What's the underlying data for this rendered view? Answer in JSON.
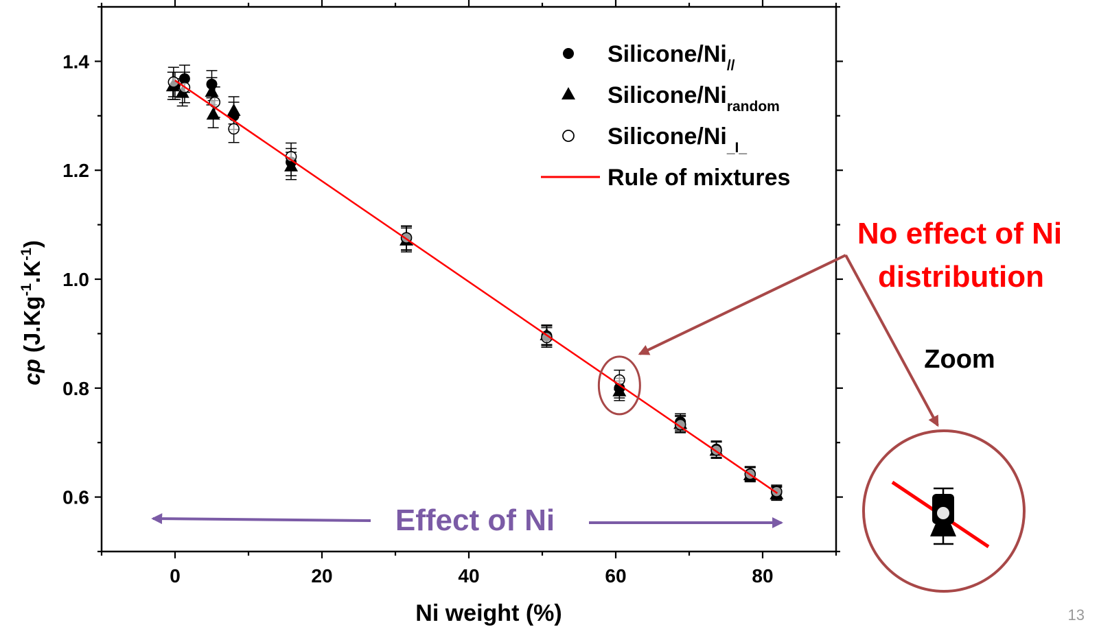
{
  "chart_data": {
    "type": "scatter",
    "title": "",
    "xlabel": "Ni weight (%)",
    "ylabel": {
      "main": "cp",
      "units_prefix": "(J.Kg",
      "sup1": "-1",
      "units_mid": ".K",
      "sup2": "-1",
      "units_suffix": ")"
    },
    "xlim": [
      -10,
      90
    ],
    "ylim": [
      0.5,
      1.5
    ],
    "xticks": [
      0,
      20,
      40,
      60,
      80
    ],
    "yticks": [
      0.6,
      0.8,
      1.0,
      1.2,
      1.4
    ],
    "xtick_labels": [
      "0",
      "20",
      "40",
      "60",
      "80"
    ],
    "ytick_labels": [
      "0.6",
      "0.8",
      "1.0",
      "1.2",
      "1.4"
    ],
    "grid": false,
    "legend_position": "top-right",
    "series": [
      {
        "name": "Silicone/Ni",
        "subscript": "//",
        "marker": "filled-circle",
        "color": "#000000",
        "points": [
          {
            "x": 0,
            "y": 1.355,
            "err": 0.025
          },
          {
            "x": 1.3,
            "y": 1.368,
            "err": 0.025
          },
          {
            "x": 5,
            "y": 1.358,
            "err": 0.025
          },
          {
            "x": 8,
            "y": 1.3,
            "err": 0.025
          },
          {
            "x": 15.8,
            "y": 1.215,
            "err": 0.025
          },
          {
            "x": 31.5,
            "y": 1.075,
            "err": 0.022
          },
          {
            "x": 50.6,
            "y": 0.896,
            "err": 0.018
          },
          {
            "x": 60.5,
            "y": 0.8,
            "err": 0.018
          },
          {
            "x": 68.8,
            "y": 0.738,
            "err": 0.015
          },
          {
            "x": 73.7,
            "y": 0.688,
            "err": 0.015
          },
          {
            "x": 78.3,
            "y": 0.643,
            "err": 0.013
          },
          {
            "x": 81.9,
            "y": 0.608,
            "err": 0.012
          }
        ]
      },
      {
        "name": "Silicone/Ni",
        "subscript": "random",
        "marker": "filled-triangle",
        "color": "#000000",
        "points": [
          {
            "x": -0.3,
            "y": 1.355,
            "err": 0.025
          },
          {
            "x": 1.0,
            "y": 1.343,
            "err": 0.025
          },
          {
            "x": 5.0,
            "y": 1.345,
            "err": 0.025
          },
          {
            "x": 5.2,
            "y": 1.303,
            "err": 0.025
          },
          {
            "x": 8.0,
            "y": 1.31,
            "err": 0.025
          },
          {
            "x": 15.8,
            "y": 1.208,
            "err": 0.025
          },
          {
            "x": 31.5,
            "y": 1.072,
            "err": 0.022
          },
          {
            "x": 50.6,
            "y": 0.898,
            "err": 0.018
          },
          {
            "x": 60.5,
            "y": 0.795,
            "err": 0.018
          },
          {
            "x": 68.8,
            "y": 0.735,
            "err": 0.015
          },
          {
            "x": 73.7,
            "y": 0.686,
            "err": 0.015
          },
          {
            "x": 78.3,
            "y": 0.641,
            "err": 0.013
          },
          {
            "x": 81.9,
            "y": 0.606,
            "err": 0.012
          }
        ]
      },
      {
        "name": "Silicone/Ni",
        "subscript": "_I_",
        "marker": "open-circle",
        "color": "#000000",
        "points": [
          {
            "x": -0.2,
            "y": 1.362,
            "err": 0.027
          },
          {
            "x": 1.3,
            "y": 1.352,
            "err": 0.028
          },
          {
            "x": 5.4,
            "y": 1.325,
            "err": 0.028
          },
          {
            "x": 8.0,
            "y": 1.276,
            "err": 0.025
          },
          {
            "x": 15.8,
            "y": 1.225,
            "err": 0.025
          },
          {
            "x": 31.5,
            "y": 1.076,
            "err": 0.022
          },
          {
            "x": 50.6,
            "y": 0.893,
            "err": 0.018
          },
          {
            "x": 60.5,
            "y": 0.815,
            "err": 0.018
          },
          {
            "x": 68.8,
            "y": 0.733,
            "err": 0.015
          },
          {
            "x": 73.7,
            "y": 0.686,
            "err": 0.015
          },
          {
            "x": 78.3,
            "y": 0.642,
            "err": 0.013
          },
          {
            "x": 81.9,
            "y": 0.61,
            "err": 0.012
          }
        ]
      },
      {
        "name": "Rule of mixtures",
        "marker": "line",
        "color": "#ff0000",
        "points": [
          {
            "x": 0,
            "y": 1.365
          },
          {
            "x": 82,
            "y": 0.607
          }
        ]
      }
    ],
    "annotations": {
      "effect_label": "Effect of Ni",
      "effect_arrow_x": [
        -3,
        82
      ],
      "effect_color": "#7b5ba6",
      "highlight_circle_center": {
        "x": 60.5,
        "y": 0.805
      },
      "highlight_color": "#a84848",
      "no_effect_line1": "No effect of Ni",
      "no_effect_line2": "distribution",
      "no_effect_color": "#ff0000",
      "zoom_label": "Zoom"
    }
  },
  "slide": {
    "page_number": "13"
  }
}
